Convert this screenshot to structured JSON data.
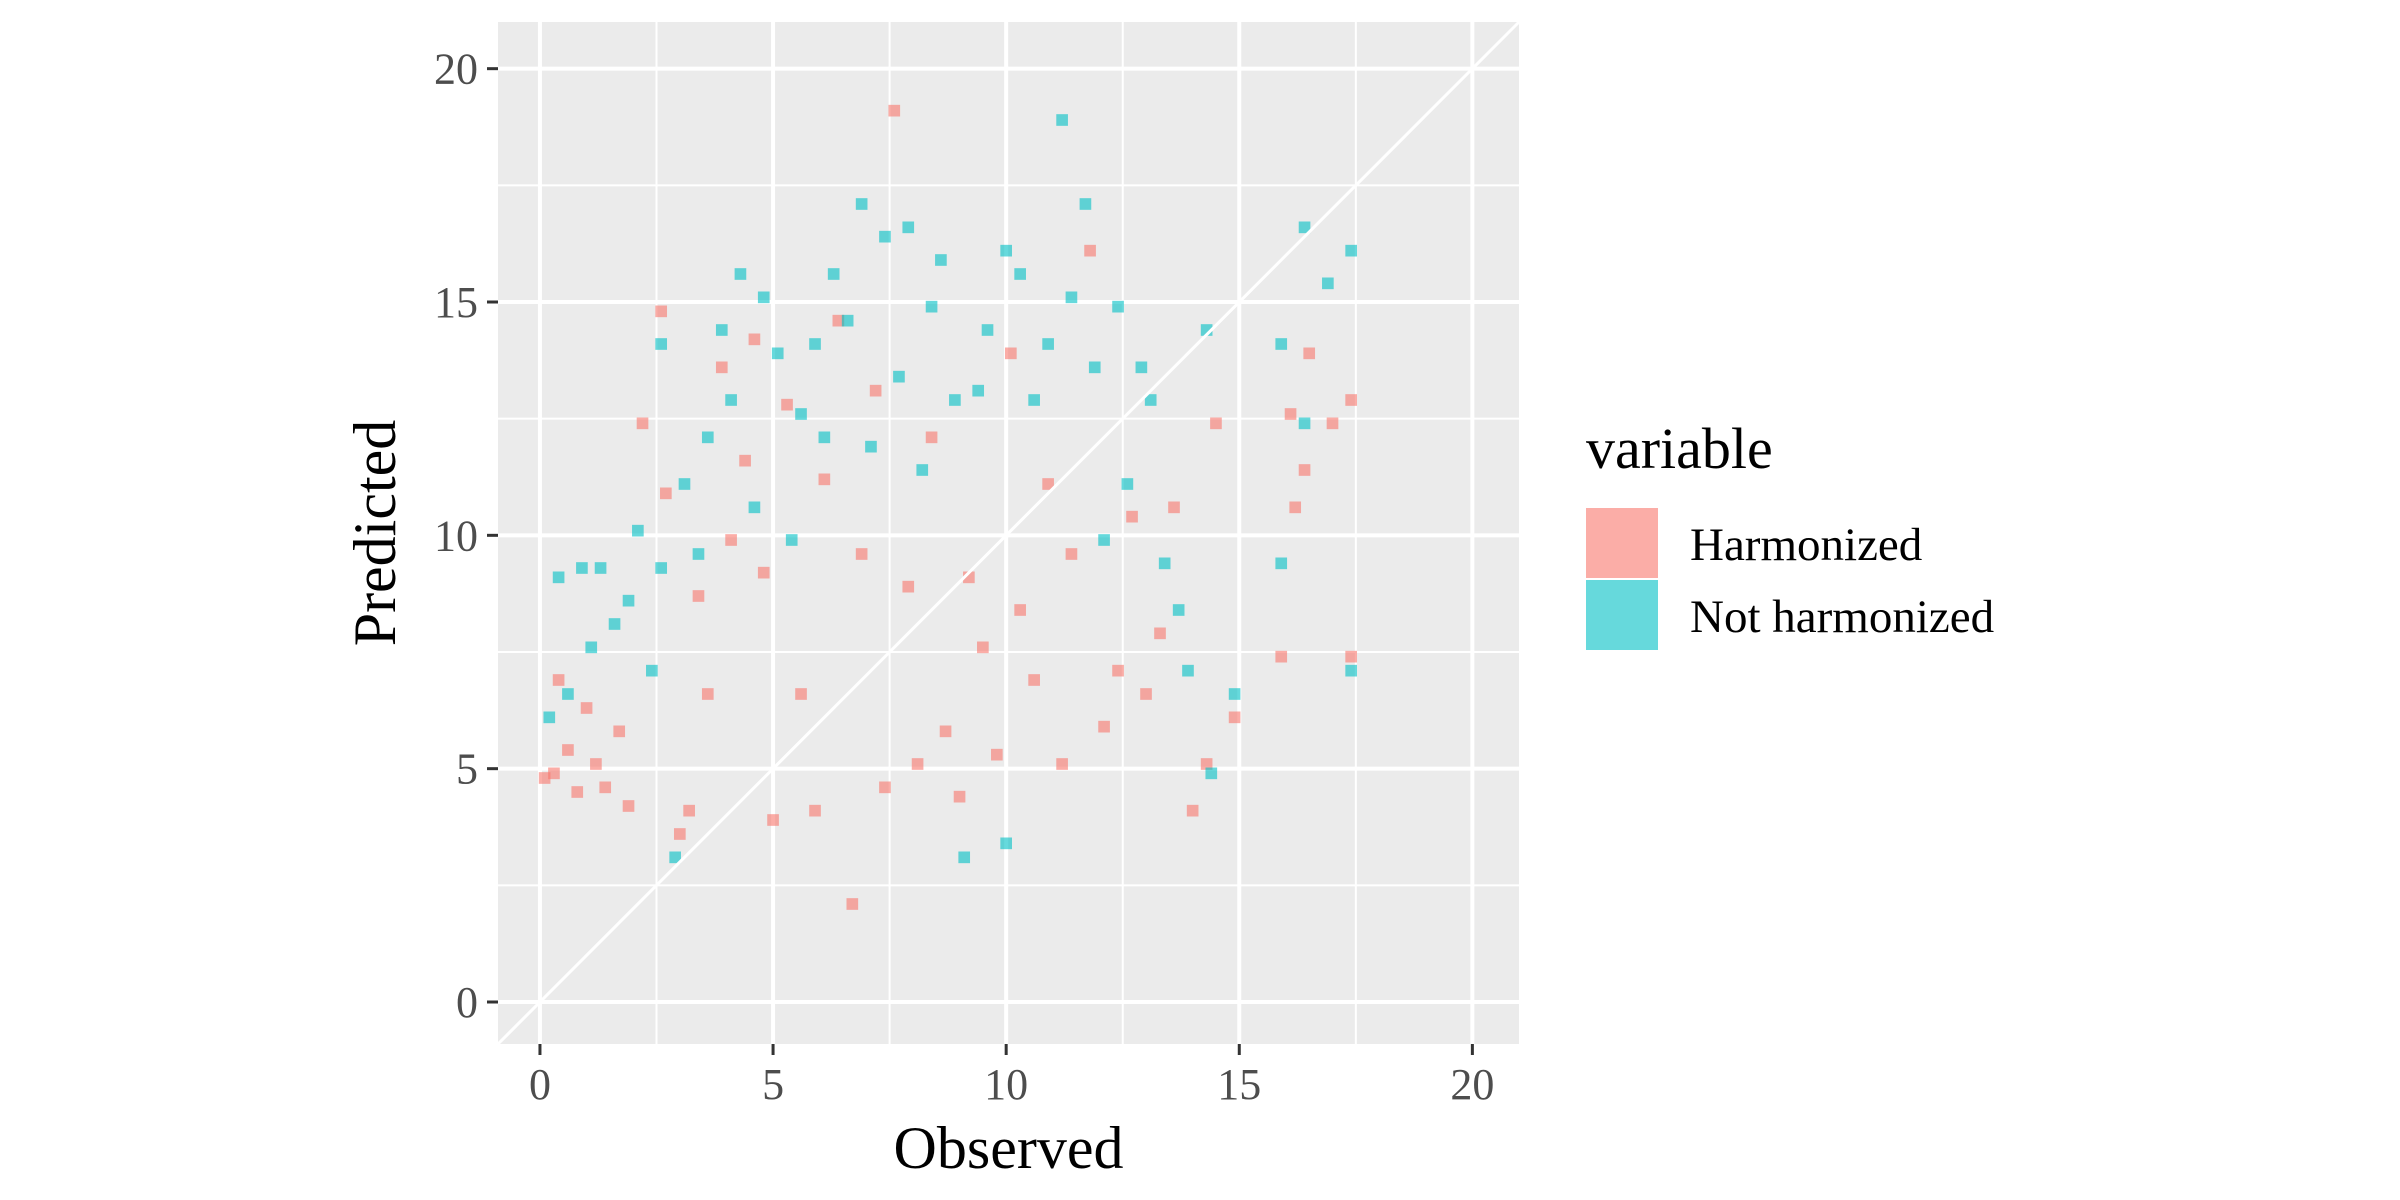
{
  "chart_data": {
    "type": "heatmap",
    "title": "",
    "xlabel": "Observed",
    "ylabel": "Predicted",
    "xlim": [
      -0.9,
      21
    ],
    "ylim": [
      -0.9,
      21
    ],
    "xticks": [
      0,
      5,
      10,
      15,
      20
    ],
    "yticks": [
      0,
      5,
      10,
      15,
      20
    ],
    "grid": true,
    "reference_line": "y = x",
    "bin_width": 0.25,
    "legend": {
      "title": "variable",
      "position": "right",
      "entries": [
        {
          "label": "Harmonized",
          "color": "#F8766D"
        },
        {
          "label": "Not harmonized",
          "color": "#00BFC4"
        }
      ]
    },
    "series": [
      {
        "name": "Harmonized",
        "color": "#F8766D",
        "opacity": 0.6,
        "points": [
          [
            0.1,
            4.8
          ],
          [
            0.3,
            4.9
          ],
          [
            0.4,
            6.9
          ],
          [
            0.6,
            5.4
          ],
          [
            0.8,
            4.5
          ],
          [
            1.0,
            6.3
          ],
          [
            1.2,
            5.1
          ],
          [
            1.4,
            4.6
          ],
          [
            1.7,
            5.8
          ],
          [
            1.9,
            4.2
          ],
          [
            2.2,
            12.4
          ],
          [
            2.6,
            14.8
          ],
          [
            2.7,
            10.9
          ],
          [
            3.0,
            3.6
          ],
          [
            3.2,
            4.1
          ],
          [
            3.4,
            8.7
          ],
          [
            3.6,
            6.6
          ],
          [
            3.9,
            13.6
          ],
          [
            4.1,
            9.9
          ],
          [
            4.4,
            11.6
          ],
          [
            4.6,
            14.2
          ],
          [
            4.8,
            9.2
          ],
          [
            5.0,
            3.9
          ],
          [
            5.3,
            12.8
          ],
          [
            5.6,
            6.6
          ],
          [
            5.9,
            4.1
          ],
          [
            6.1,
            11.2
          ],
          [
            6.4,
            14.6
          ],
          [
            6.7,
            2.1
          ],
          [
            6.9,
            9.6
          ],
          [
            7.2,
            13.1
          ],
          [
            7.4,
            4.6
          ],
          [
            7.6,
            19.1
          ],
          [
            7.9,
            8.9
          ],
          [
            8.1,
            5.1
          ],
          [
            8.4,
            12.1
          ],
          [
            8.7,
            5.8
          ],
          [
            9.0,
            4.4
          ],
          [
            9.2,
            9.1
          ],
          [
            9.5,
            7.6
          ],
          [
            9.8,
            5.3
          ],
          [
            10.1,
            13.9
          ],
          [
            10.3,
            8.4
          ],
          [
            10.6,
            6.9
          ],
          [
            10.9,
            11.1
          ],
          [
            11.2,
            5.1
          ],
          [
            11.4,
            9.6
          ],
          [
            11.8,
            16.1
          ],
          [
            12.1,
            5.9
          ],
          [
            12.4,
            7.1
          ],
          [
            12.7,
            10.4
          ],
          [
            13.0,
            6.6
          ],
          [
            13.3,
            7.9
          ],
          [
            13.6,
            10.6
          ],
          [
            14.0,
            4.1
          ],
          [
            14.3,
            5.1
          ],
          [
            14.5,
            12.4
          ],
          [
            14.9,
            6.1
          ],
          [
            15.9,
            7.4
          ],
          [
            16.1,
            12.6
          ],
          [
            16.2,
            10.6
          ],
          [
            16.4,
            11.4
          ],
          [
            16.5,
            13.9
          ],
          [
            17.0,
            12.4
          ],
          [
            17.4,
            12.9
          ],
          [
            17.4,
            7.4
          ]
        ]
      },
      {
        "name": "Not harmonized",
        "color": "#00BFC4",
        "opacity": 0.6,
        "points": [
          [
            0.2,
            6.1
          ],
          [
            0.4,
            9.1
          ],
          [
            0.6,
            6.6
          ],
          [
            0.9,
            9.3
          ],
          [
            1.1,
            7.6
          ],
          [
            1.3,
            9.3
          ],
          [
            1.6,
            8.1
          ],
          [
            1.9,
            8.6
          ],
          [
            2.1,
            10.1
          ],
          [
            2.4,
            7.1
          ],
          [
            2.6,
            9.3
          ],
          [
            2.6,
            14.1
          ],
          [
            2.9,
            3.1
          ],
          [
            3.1,
            11.1
          ],
          [
            3.4,
            9.6
          ],
          [
            3.6,
            12.1
          ],
          [
            3.9,
            14.4
          ],
          [
            4.1,
            12.9
          ],
          [
            4.3,
            15.6
          ],
          [
            4.6,
            10.6
          ],
          [
            4.8,
            15.1
          ],
          [
            5.1,
            13.9
          ],
          [
            5.4,
            9.9
          ],
          [
            5.6,
            12.6
          ],
          [
            5.9,
            14.1
          ],
          [
            6.1,
            12.1
          ],
          [
            6.3,
            15.6
          ],
          [
            6.6,
            14.6
          ],
          [
            6.9,
            17.1
          ],
          [
            7.1,
            11.9
          ],
          [
            7.4,
            16.4
          ],
          [
            7.7,
            13.4
          ],
          [
            7.9,
            16.6
          ],
          [
            8.2,
            11.4
          ],
          [
            8.4,
            14.9
          ],
          [
            8.6,
            15.9
          ],
          [
            8.9,
            12.9
          ],
          [
            9.1,
            3.1
          ],
          [
            9.4,
            13.1
          ],
          [
            9.6,
            14.4
          ],
          [
            10.0,
            16.1
          ],
          [
            10.0,
            3.4
          ],
          [
            10.3,
            15.6
          ],
          [
            10.6,
            12.9
          ],
          [
            10.9,
            14.1
          ],
          [
            11.2,
            18.9
          ],
          [
            11.4,
            15.1
          ],
          [
            11.7,
            17.1
          ],
          [
            11.9,
            13.6
          ],
          [
            12.1,
            9.9
          ],
          [
            12.4,
            14.9
          ],
          [
            12.6,
            11.1
          ],
          [
            12.9,
            13.6
          ],
          [
            13.1,
            12.9
          ],
          [
            13.4,
            9.4
          ],
          [
            13.7,
            8.4
          ],
          [
            13.9,
            7.1
          ],
          [
            14.3,
            14.4
          ],
          [
            14.4,
            4.9
          ],
          [
            14.9,
            6.6
          ],
          [
            15.9,
            9.4
          ],
          [
            15.9,
            14.1
          ],
          [
            16.4,
            12.4
          ],
          [
            16.4,
            16.6
          ],
          [
            16.9,
            15.4
          ],
          [
            17.4,
            16.1
          ],
          [
            17.4,
            7.1
          ]
        ]
      }
    ]
  }
}
